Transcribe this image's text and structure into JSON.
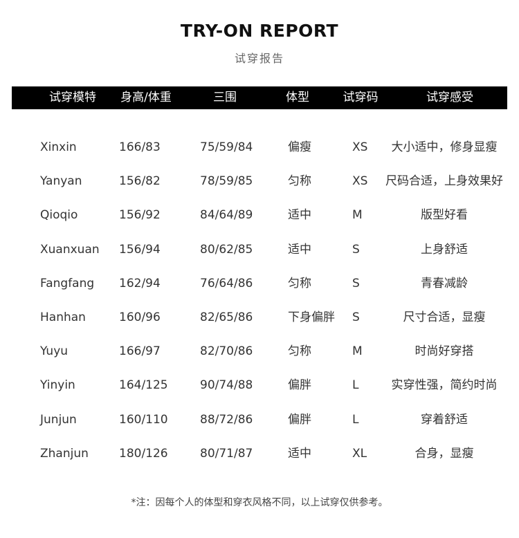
{
  "title": "TRY-ON REPORT",
  "subtitle": "试穿报告",
  "table": {
    "headers": [
      "试穿模特",
      "身高/体重",
      "三围",
      "体型",
      "试穿码",
      "试穿感受"
    ],
    "rows": [
      [
        "Xinxin",
        "166/83",
        "75/59/84",
        "偏瘦",
        "XS",
        "大小适中，修身显瘦"
      ],
      [
        "Yanyan",
        "156/82",
        "78/59/85",
        "匀称",
        "XS",
        "尺码合适，上身效果好"
      ],
      [
        "Qioqio",
        "156/92",
        "84/64/89",
        "适中",
        "M",
        "版型好看"
      ],
      [
        "Xuanxuan",
        "156/94",
        "80/62/85",
        "适中",
        "S",
        "上身舒适"
      ],
      [
        "Fangfang",
        "162/94",
        "76/64/86",
        "匀称",
        "S",
        "青春减龄"
      ],
      [
        "Hanhan",
        "160/96",
        "82/65/86",
        "下身偏胖",
        "S",
        "尺寸合适，显瘦"
      ],
      [
        "Yuyu",
        "166/97",
        "82/70/86",
        "匀称",
        "M",
        "时尚好穿搭"
      ],
      [
        "Yinyin",
        "164/125",
        "90/74/88",
        "偏胖",
        "L",
        "实穿性强，简约时尚"
      ],
      [
        "Junjun",
        "160/110",
        "88/72/86",
        "偏胖",
        "L",
        "穿着舒适"
      ],
      [
        "Zhanjun",
        "180/126",
        "80/71/87",
        "适中",
        "XL",
        "合身，显瘦"
      ]
    ]
  },
  "note": "*注：因每个人的体型和穿衣风格不同，以上试穿仅供参考。"
}
